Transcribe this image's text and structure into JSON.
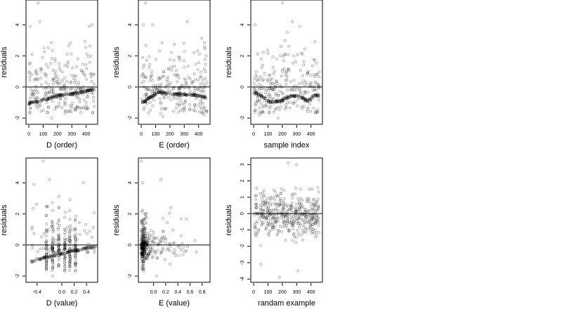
{
  "chart_data": [
    {
      "type": "scatter",
      "panel": "D (order)",
      "xlabel": "D (order)",
      "ylabel": "residuals",
      "xlim": [
        -20,
        480
      ],
      "ylim": [
        -2.4,
        5.6
      ],
      "xticks": [
        0,
        100,
        200,
        300,
        400
      ],
      "yticks": [
        -2,
        0,
        2,
        4
      ],
      "hline": 0,
      "pattern": "band",
      "band": [
        [
          0,
          -1.05
        ],
        [
          100,
          -0.85
        ],
        [
          200,
          -0.55
        ],
        [
          300,
          -0.45
        ],
        [
          400,
          -0.25
        ],
        [
          460,
          -0.15
        ]
      ],
      "extreme_points": [
        [
          8,
          3.9
        ],
        [
          65,
          5.4
        ],
        [
          75,
          4.2
        ],
        [
          160,
          -2.0
        ],
        [
          420,
          3.9
        ],
        [
          440,
          4.0
        ]
      ]
    },
    {
      "type": "scatter",
      "panel": "E (order)",
      "xlabel": "E (order)",
      "ylabel": "residuals",
      "xlim": [
        -20,
        480
      ],
      "ylim": [
        -2.4,
        5.6
      ],
      "xticks": [
        0,
        100,
        200,
        300,
        400
      ],
      "yticks": [
        -2,
        0,
        2,
        4
      ],
      "hline": 0,
      "pattern": "band",
      "band": [
        [
          0,
          -1.05
        ],
        [
          60,
          -0.7
        ],
        [
          120,
          -0.35
        ],
        [
          200,
          -0.45
        ],
        [
          300,
          -0.5
        ],
        [
          400,
          -0.55
        ],
        [
          460,
          -0.7
        ]
      ],
      "extreme_points": [
        [
          30,
          5.4
        ],
        [
          15,
          4.0
        ],
        [
          80,
          4.0
        ],
        [
          320,
          4.2
        ],
        [
          150,
          -1.9
        ],
        [
          440,
          -1.8
        ]
      ]
    },
    {
      "type": "scatter",
      "panel": "sample index",
      "xlabel": "sample index",
      "ylabel": "residuals",
      "xlim": [
        -20,
        480
      ],
      "ylim": [
        -2.4,
        5.6
      ],
      "xticks": [
        0,
        100,
        200,
        300,
        400
      ],
      "yticks": [
        -2,
        0,
        2,
        4
      ],
      "hline": 0,
      "pattern": "band",
      "band": [
        [
          0,
          -0.3
        ],
        [
          60,
          -0.6
        ],
        [
          120,
          -1.0
        ],
        [
          180,
          -0.95
        ],
        [
          260,
          -0.55
        ],
        [
          320,
          -0.6
        ],
        [
          380,
          -0.9
        ],
        [
          420,
          -0.5
        ],
        [
          460,
          -0.6
        ]
      ],
      "extreme_points": [
        [
          10,
          4.0
        ],
        [
          200,
          5.4
        ],
        [
          270,
          4.2
        ],
        [
          320,
          3.9
        ],
        [
          170,
          -2.0
        ],
        [
          40,
          -1.8
        ]
      ]
    },
    {
      "type": "scatter",
      "panel": "D (value)",
      "xlabel": "D (value)",
      "ylabel": "residuals",
      "xlim": [
        -0.58,
        0.58
      ],
      "ylim": [
        -2.4,
        5.6
      ],
      "xticks": [
        -0.4,
        0.0,
        0.2,
        0.4
      ],
      "xticklabels": [
        "-0.4",
        "0.0",
        "0.2",
        "0.4"
      ],
      "yticks": [
        -2,
        0,
        2,
        4
      ],
      "hline": 0,
      "pattern": "columns",
      "columns": [
        -0.25,
        -0.15,
        -0.05,
        0.05,
        0.13,
        0.22
      ],
      "band": [
        [
          -0.5,
          -1.05
        ],
        [
          -0.2,
          -0.75
        ],
        [
          0.1,
          -0.45
        ],
        [
          0.4,
          -0.2
        ],
        [
          0.55,
          -0.1
        ]
      ],
      "extreme_points": [
        [
          -0.45,
          3.9
        ],
        [
          -0.3,
          5.4
        ],
        [
          -0.2,
          4.2
        ],
        [
          0.35,
          4.0
        ],
        [
          -0.15,
          -2.0
        ]
      ]
    },
    {
      "type": "scatter",
      "panel": "E (value)",
      "xlabel": "E (value)",
      "ylabel": "residuals",
      "xlim": [
        -0.25,
        0.93
      ],
      "ylim": [
        -2.4,
        5.6
      ],
      "xticks": [
        0.0,
        0.2,
        0.4,
        0.6,
        0.8
      ],
      "xticklabels": [
        "0.0",
        "0.2",
        "0.4",
        "0.6",
        "0.8"
      ],
      "yticks": [
        -2,
        0,
        2,
        4
      ],
      "hline": 0,
      "pattern": "left-cluster",
      "extreme_points": [
        [
          -0.2,
          5.4
        ],
        [
          -0.18,
          4.0
        ],
        [
          0.12,
          4.2
        ],
        [
          0.28,
          2.4
        ],
        [
          0.05,
          -2.0
        ]
      ]
    },
    {
      "type": "scatter",
      "panel": "randam example",
      "xlabel": "randam example",
      "ylabel": "residuals",
      "xlim": [
        -20,
        480
      ],
      "ylim": [
        -4.2,
        3.4
      ],
      "xticks": [
        0,
        100,
        200,
        300,
        400
      ],
      "yticks": [
        -4,
        -3,
        -2,
        -1,
        0,
        1,
        2,
        3
      ],
      "hline": 0,
      "pattern": "random",
      "extreme_points": [
        [
          180,
          -3.9
        ],
        [
          310,
          -3.5
        ],
        [
          240,
          3.1
        ],
        [
          300,
          3.0
        ],
        [
          50,
          -3.1
        ]
      ]
    }
  ]
}
